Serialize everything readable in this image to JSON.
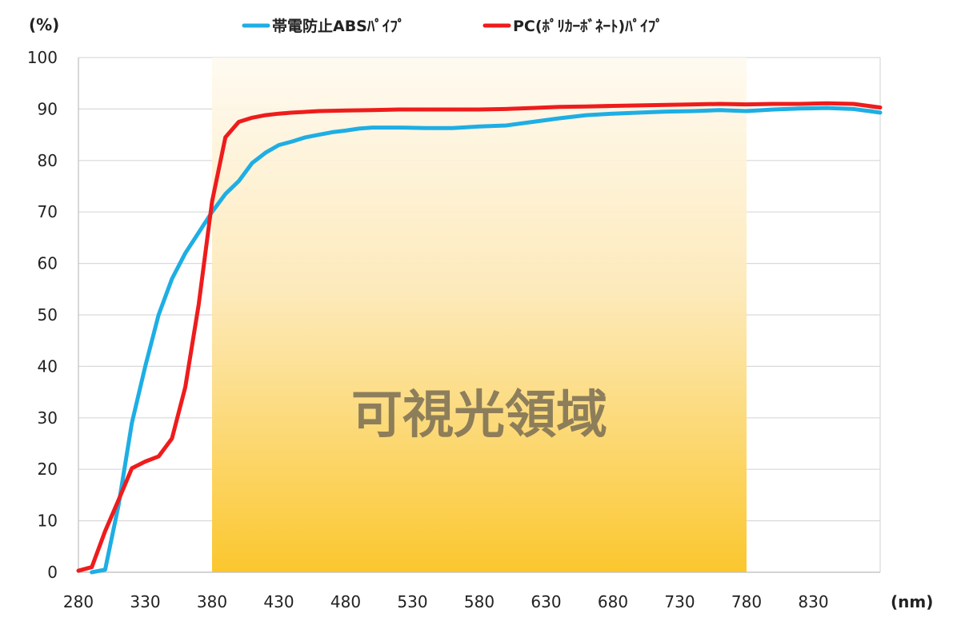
{
  "chart_data": {
    "type": "line",
    "title": "",
    "xlabel": "(nm)",
    "ylabel": "(%)",
    "xlim": [
      280,
      880
    ],
    "ylim": [
      0,
      100
    ],
    "x_ticks": [
      280,
      330,
      380,
      430,
      480,
      530,
      580,
      630,
      680,
      730,
      780,
      830
    ],
    "y_ticks": [
      0,
      10,
      20,
      30,
      40,
      50,
      60,
      70,
      80,
      90,
      100
    ],
    "grid": "horizontal",
    "legend_position": "top",
    "highlight_region": {
      "label": "可視光領域",
      "x_start": 380,
      "x_end": 780
    },
    "series": [
      {
        "name": "帯電防止ABSﾊﾟｲﾌﾟ",
        "color": "#1eaee4",
        "x": [
          290,
          300,
          310,
          320,
          330,
          340,
          350,
          360,
          370,
          380,
          390,
          400,
          410,
          420,
          430,
          440,
          450,
          460,
          470,
          480,
          490,
          500,
          520,
          540,
          560,
          580,
          600,
          620,
          640,
          660,
          680,
          700,
          720,
          740,
          760,
          780,
          800,
          820,
          840,
          860,
          880
        ],
        "values": [
          0,
          0.5,
          13,
          29,
          40,
          50,
          57,
          62,
          66,
          70,
          73.5,
          76,
          79.5,
          81.5,
          83,
          83.7,
          84.5,
          85,
          85.5,
          85.8,
          86.2,
          86.4,
          86.4,
          86.3,
          86.3,
          86.6,
          86.8,
          87.5,
          88.2,
          88.8,
          89.1,
          89.3,
          89.5,
          89.6,
          89.8,
          89.6,
          89.9,
          90.1,
          90.2,
          90.0,
          89.3
        ]
      },
      {
        "name": "PC(ﾎﾟﾘｶｰﾎﾞﾈｰﾄ)ﾊﾟｲﾌﾟ",
        "color": "#ee1c1c",
        "x": [
          280,
          290,
          300,
          310,
          320,
          330,
          340,
          350,
          360,
          370,
          380,
          390,
          400,
          410,
          420,
          430,
          440,
          460,
          480,
          500,
          520,
          540,
          560,
          580,
          600,
          620,
          640,
          660,
          680,
          700,
          720,
          740,
          760,
          780,
          800,
          820,
          840,
          860,
          880
        ],
        "values": [
          0.3,
          1,
          8,
          14,
          20.2,
          21.5,
          22.5,
          26,
          36,
          52,
          72,
          84.5,
          87.5,
          88.3,
          88.8,
          89.1,
          89.3,
          89.6,
          89.7,
          89.8,
          89.9,
          89.9,
          89.9,
          89.9,
          90.0,
          90.2,
          90.4,
          90.5,
          90.6,
          90.7,
          90.8,
          90.9,
          91.0,
          90.9,
          91.0,
          91.0,
          91.1,
          91.0,
          90.3
        ]
      }
    ]
  }
}
